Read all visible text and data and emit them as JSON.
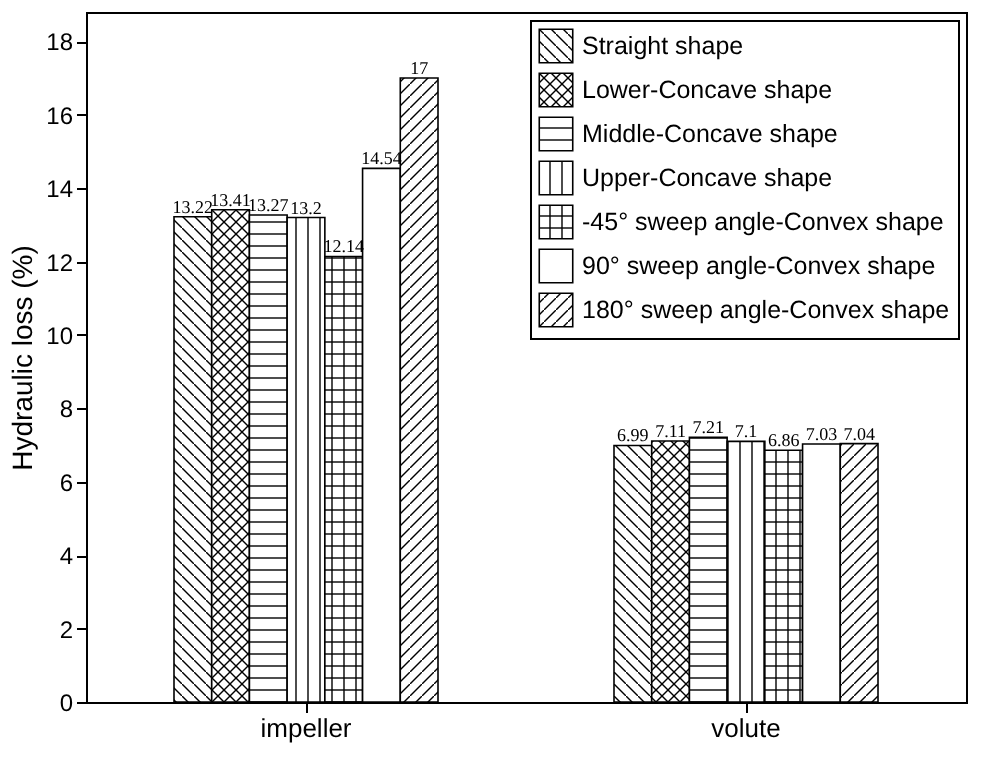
{
  "chart_data": {
    "type": "bar",
    "ylabel": "Hydraulic loss (%)",
    "categories": [
      "impeller",
      "volute"
    ],
    "series": [
      {
        "name": "Straight shape",
        "color": "#000000",
        "values": [
          13.22,
          6.99
        ]
      },
      {
        "name": "Lower-Concave shape",
        "color": "#000000",
        "values": [
          13.41,
          7.11
        ]
      },
      {
        "name": "Middle-Concave shape",
        "color": "#000000",
        "values": [
          13.27,
          7.21
        ]
      },
      {
        "name": "Upper-Concave shape",
        "color": "#000000",
        "values": [
          13.2,
          7.1
        ]
      },
      {
        "name": "-45° sweep angle-Convex shape",
        "color": "#000000",
        "values": [
          12.14,
          6.86
        ]
      },
      {
        "name": "90° sweep angle-Convex shape",
        "color": "#000000",
        "values": [
          14.54,
          7.03
        ]
      },
      {
        "name": "180° sweep angle-Convex shape",
        "color": "#000000",
        "values": [
          17,
          7.04
        ]
      }
    ],
    "ylim": [
      0,
      18.8
    ],
    "yticks": [
      0,
      2,
      4,
      6,
      8,
      10,
      12,
      14,
      16,
      18
    ],
    "data_labels": true,
    "legend": "top right"
  }
}
